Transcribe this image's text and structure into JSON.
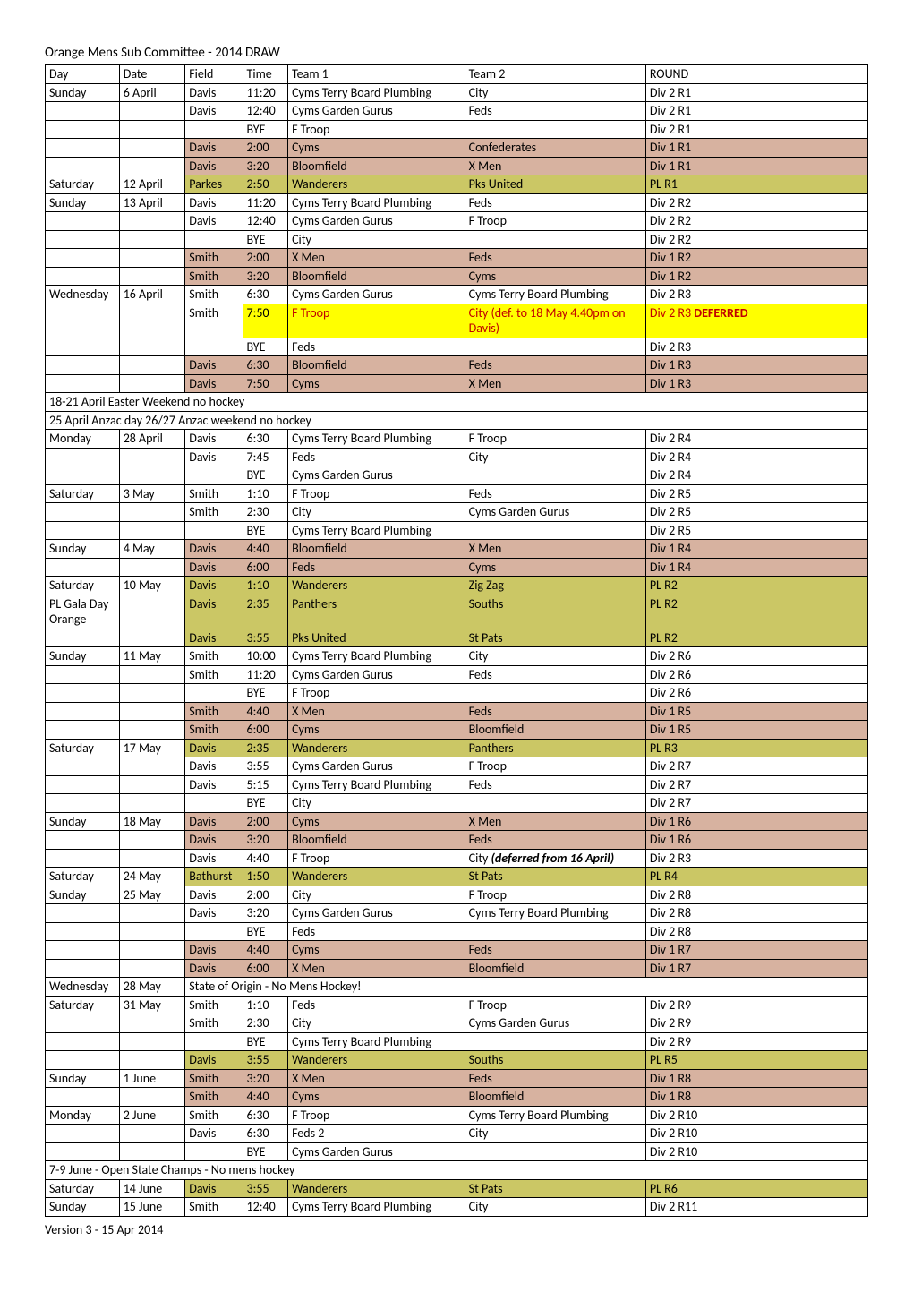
{
  "title": "Orange Mens Sub Committee - 2014 DRAW",
  "footer": "Version 3 - 15 Apr 2014",
  "columns": [
    "Day",
    "Date",
    "Field",
    "Time",
    "Team 1",
    "Team 2",
    "ROUND"
  ],
  "colors": {
    "div1": "#d7b2a0",
    "div1_darker": "#d0a48e",
    "pl": "#cbc765",
    "highlight": "#ffff00",
    "red_text": "#c00000"
  },
  "rows": [
    {
      "type": "row",
      "cells": [
        "Sunday",
        "6 April",
        "Davis",
        "11:20",
        "Cyms Terry Board Plumbing",
        "City",
        "Div 2 R1"
      ]
    },
    {
      "type": "row",
      "cells": [
        "",
        "",
        "Davis",
        "12:40",
        "Cyms Garden Gurus",
        "Feds",
        "Div 2 R1"
      ]
    },
    {
      "type": "row",
      "cells": [
        "",
        "",
        "",
        "BYE",
        "F Troop",
        "",
        "Div 2 R1"
      ]
    },
    {
      "type": "row",
      "cells": [
        "",
        "",
        "Davis",
        "2:00",
        "Cyms",
        "Confederates",
        "Div 1 R1"
      ],
      "fill": "div1"
    },
    {
      "type": "row",
      "cells": [
        "",
        "",
        "Davis",
        "3:20",
        "Bloomfield",
        "X Men",
        "Div 1 R1"
      ],
      "fill": "div1"
    },
    {
      "type": "row",
      "cells": [
        "Saturday",
        "12 April",
        "Parkes",
        "2:50",
        "Wanderers",
        "Pks United",
        "PL R1"
      ],
      "fill": "pl"
    },
    {
      "type": "row",
      "cells": [
        "Sunday",
        "13 April",
        "Davis",
        "11:20",
        "Cyms Terry Board Plumbing",
        "Feds",
        "Div 2 R2"
      ]
    },
    {
      "type": "row",
      "cells": [
        "",
        "",
        "Davis",
        "12:40",
        "Cyms Garden Gurus",
        "F Troop",
        "Div 2 R2"
      ]
    },
    {
      "type": "row",
      "cells": [
        "",
        "",
        "",
        "BYE",
        "City",
        "",
        "Div 2 R2"
      ]
    },
    {
      "type": "row",
      "cells": [
        "",
        "",
        "Smith",
        "2:00",
        "X Men",
        "Feds",
        "Div 1 R2"
      ],
      "fill": "div1"
    },
    {
      "type": "row",
      "cells": [
        "",
        "",
        "Smith",
        "3:20",
        "Bloomfield",
        "Cyms",
        "Div 1 R2"
      ],
      "fill": "div1"
    },
    {
      "type": "row",
      "cells": [
        "Wednesday",
        "16 April",
        "Smith",
        "6:30",
        "Cyms Garden Gurus",
        "Cyms Terry Board Plumbing",
        "Div 2 R3"
      ]
    },
    {
      "type": "special_highlight",
      "cells": [
        "",
        "",
        "Smith",
        "7:50",
        "F Troop",
        "City (def. to 18 May 4.40pm on Davis)",
        "Div 2 R3 DEFERRED"
      ]
    },
    {
      "type": "row",
      "cells": [
        "",
        "",
        "",
        "BYE",
        "Feds",
        "",
        "Div 2 R3"
      ]
    },
    {
      "type": "row",
      "cells": [
        "",
        "",
        "Davis",
        "6:30",
        "Bloomfield",
        "Feds",
        "Div 1 R3"
      ],
      "fill": "div1"
    },
    {
      "type": "row",
      "cells": [
        "",
        "",
        "Davis",
        "7:50",
        "Cyms",
        "X Men",
        "Div 1 R3"
      ],
      "fill": "div1"
    },
    {
      "type": "note",
      "text": "18-21 April Easter Weekend no hockey"
    },
    {
      "type": "note",
      "text": "25 April Anzac day 26/27 Anzac weekend no hockey"
    },
    {
      "type": "row",
      "cells": [
        "Monday",
        "28 April",
        "Davis",
        "6:30",
        "Cyms Terry Board Plumbing",
        "F Troop",
        "Div 2 R4"
      ]
    },
    {
      "type": "row",
      "cells": [
        "",
        "",
        "Davis",
        "7:45",
        "Feds",
        "City",
        "Div 2 R4"
      ]
    },
    {
      "type": "row",
      "cells": [
        "",
        "",
        "",
        "BYE",
        "Cyms Garden Gurus",
        "",
        "Div 2 R4"
      ]
    },
    {
      "type": "row",
      "cells": [
        "Saturday",
        "3 May",
        "Smith",
        "1:10",
        "F Troop",
        "Feds",
        "Div 2 R5"
      ]
    },
    {
      "type": "row",
      "cells": [
        "",
        "",
        "Smith",
        "2:30",
        "City",
        "Cyms Garden Gurus",
        "Div 2 R5"
      ]
    },
    {
      "type": "row",
      "cells": [
        "",
        "",
        "",
        "BYE",
        "Cyms Terry Board Plumbing",
        "",
        "Div 2 R5"
      ]
    },
    {
      "type": "row",
      "cells": [
        "Sunday",
        "4 May",
        "Davis",
        "4:40",
        "Bloomfield",
        "X Men",
        "Div 1 R4"
      ],
      "fill": "div1"
    },
    {
      "type": "row",
      "cells": [
        "",
        "",
        "Davis",
        "6:00",
        "Feds",
        "Cyms",
        "Div 1 R4"
      ],
      "fill": "div1"
    },
    {
      "type": "row",
      "cells": [
        "Saturday",
        "10 May",
        "Davis",
        "1:10",
        "Wanderers",
        "Zig Zag",
        "PL R2"
      ],
      "fill": "pl"
    },
    {
      "type": "row",
      "cells": [
        "PL Gala Day Orange",
        "",
        "Davis",
        "2:35",
        "Panthers",
        "Souths",
        "PL R2"
      ],
      "fill": "pl"
    },
    {
      "type": "row",
      "cells": [
        "",
        "",
        "Davis",
        "3:55",
        "Pks United",
        "St Pats",
        "PL R2"
      ],
      "fill": "pl"
    },
    {
      "type": "row",
      "cells": [
        "Sunday",
        "11 May",
        "Smith",
        "10:00",
        "Cyms Terry Board Plumbing",
        "City",
        "Div 2 R6"
      ]
    },
    {
      "type": "row",
      "cells": [
        "",
        "",
        "Smith",
        "11:20",
        "Cyms Garden Gurus",
        "Feds",
        "Div 2 R6"
      ]
    },
    {
      "type": "row",
      "cells": [
        "",
        "",
        "",
        "BYE",
        "F Troop",
        "",
        "Div 2 R6"
      ]
    },
    {
      "type": "row",
      "cells": [
        "",
        "",
        "Smith",
        "4:40",
        "X Men",
        "Feds",
        "Div 1 R5"
      ],
      "fill": "div1"
    },
    {
      "type": "row",
      "cells": [
        "",
        "",
        "Smith",
        "6:00",
        "Cyms",
        "Bloomfield",
        "Div 1 R5"
      ],
      "fill": "div1"
    },
    {
      "type": "row",
      "cells": [
        "Saturday",
        "17 May",
        "Davis",
        "2:35",
        "Wanderers",
        "Panthers",
        "PL R3"
      ],
      "fill": "pl"
    },
    {
      "type": "row",
      "cells": [
        "",
        "",
        "Davis",
        "3:55",
        "Cyms Garden Gurus",
        "F Troop",
        "Div 2 R7"
      ]
    },
    {
      "type": "row",
      "cells": [
        "",
        "",
        "Davis",
        "5:15",
        "Cyms Terry Board Plumbing",
        "Feds",
        "Div 2 R7"
      ]
    },
    {
      "type": "row",
      "cells": [
        "",
        "",
        "",
        "BYE",
        "City",
        "",
        "Div 2 R7"
      ]
    },
    {
      "type": "row",
      "cells": [
        "Sunday",
        "18 May",
        "Davis",
        "2:00",
        "Cyms",
        "X Men",
        "Div 1 R6"
      ],
      "fill": "div1"
    },
    {
      "type": "row",
      "cells": [
        "",
        "",
        "Davis",
        "3:20",
        "Bloomfield",
        "Feds",
        "Div 1 R6"
      ],
      "fill": "div1"
    },
    {
      "type": "row_deferred",
      "cells": [
        "",
        "",
        "Davis",
        "4:40",
        "F Troop",
        "City (deferred from 16 April)",
        "Div 2 R3"
      ]
    },
    {
      "type": "row",
      "cells": [
        "Saturday",
        "24 May",
        "Bathurst",
        "1:50",
        "Wanderers",
        "St Pats",
        "PL R4"
      ],
      "fill": "pl"
    },
    {
      "type": "row",
      "cells": [
        "Sunday",
        "25 May",
        "Davis",
        "2:00",
        "City",
        "F Troop",
        "Div 2 R8"
      ]
    },
    {
      "type": "row",
      "cells": [
        "",
        "",
        "Davis",
        "3:20",
        "Cyms Garden Gurus",
        "Cyms Terry Board Plumbing",
        "Div 2 R8"
      ]
    },
    {
      "type": "row",
      "cells": [
        "",
        "",
        "",
        "BYE",
        "Feds",
        "",
        "Div 2 R8"
      ]
    },
    {
      "type": "row",
      "cells": [
        "",
        "",
        "Davis",
        "4:40",
        "Cyms",
        "Feds",
        "Div 1 R7"
      ],
      "fill": "div1"
    },
    {
      "type": "row",
      "cells": [
        "",
        "",
        "Davis",
        "6:00",
        "X Men",
        "Bloomfield",
        "Div 1 R7"
      ],
      "fill": "div1"
    },
    {
      "type": "state_origin",
      "day": "Wednesday",
      "date": "28 May",
      "text": "State of Origin - No Mens Hockey!"
    },
    {
      "type": "row",
      "cells": [
        "Saturday",
        "31 May",
        "Smith",
        "1:10",
        "Feds",
        "F Troop",
        "Div 2 R9"
      ]
    },
    {
      "type": "row",
      "cells": [
        "",
        "",
        "Smith",
        "2:30",
        "City",
        "Cyms Garden Gurus",
        "Div 2 R9"
      ]
    },
    {
      "type": "row",
      "cells": [
        "",
        "",
        "",
        "BYE",
        "Cyms Terry Board Plumbing",
        "",
        "Div 2 R9"
      ]
    },
    {
      "type": "row",
      "cells": [
        "",
        "",
        "Davis",
        "3:55",
        "Wanderers",
        "Souths",
        "PL R5"
      ],
      "fill": "pl"
    },
    {
      "type": "row",
      "cells": [
        "Sunday",
        "1 June",
        "Smith",
        "3:20",
        "X Men",
        "Feds",
        "Div 1 R8"
      ],
      "fill": "div1"
    },
    {
      "type": "row",
      "cells": [
        "",
        "",
        "Smith",
        "4:40",
        "Cyms",
        "Bloomfield",
        "Div 1 R8"
      ],
      "fill": "div1"
    },
    {
      "type": "row",
      "cells": [
        "Monday",
        "2 June",
        "Smith",
        "6:30",
        "F Troop",
        "Cyms Terry Board Plumbing",
        "Div 2 R10"
      ]
    },
    {
      "type": "row",
      "cells": [
        "",
        "",
        "Davis",
        "6:30",
        "Feds 2",
        "City",
        "Div 2 R10"
      ]
    },
    {
      "type": "row",
      "cells": [
        "",
        "",
        "",
        "BYE",
        "Cyms Garden Gurus",
        "",
        "Div 2 R10"
      ]
    },
    {
      "type": "note",
      "text": "7-9 June - Open State Champs - No mens hockey"
    },
    {
      "type": "row",
      "cells": [
        "Saturday",
        "14 June",
        "Davis",
        "3:55",
        "Wanderers",
        "St Pats",
        "PL R6"
      ],
      "fill": "pl"
    },
    {
      "type": "row",
      "cells": [
        "Sunday",
        "15 June",
        "Smith",
        "12:40",
        "Cyms Terry Board Plumbing",
        "City",
        "Div 2 R11"
      ]
    }
  ]
}
